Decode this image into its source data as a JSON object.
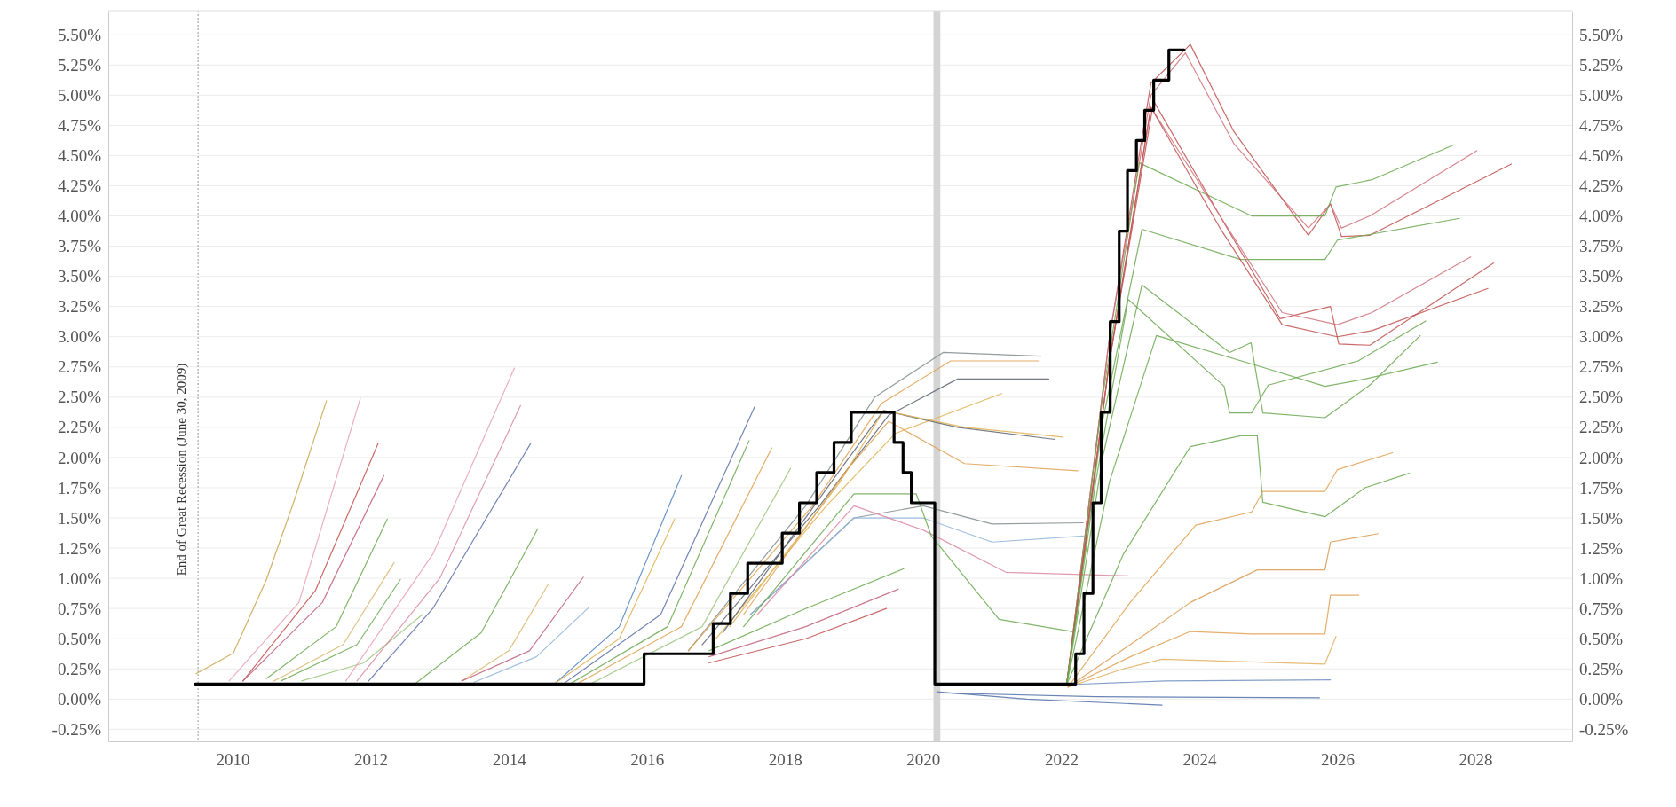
{
  "chart_data": {
    "type": "line",
    "xlim": [
      2008.2,
      2029.4
    ],
    "xticks": [
      2010,
      2012,
      2014,
      2016,
      2018,
      2020,
      2022,
      2024,
      2026,
      2028
    ],
    "ylim": [
      -0.35,
      5.7
    ],
    "yticks": [
      {
        "value": -0.25,
        "label": "-0.25%"
      },
      {
        "value": 0,
        "label": "0.00%"
      },
      {
        "value": 0.25,
        "label": "0.25%"
      },
      {
        "value": 0.5,
        "label": "0.50%"
      },
      {
        "value": 0.75,
        "label": "0.75%"
      },
      {
        "value": 1,
        "label": "1.00%"
      },
      {
        "value": 1.25,
        "label": "1.25%"
      },
      {
        "value": 1.5,
        "label": "1.50%"
      },
      {
        "value": 1.75,
        "label": "1.75%"
      },
      {
        "value": 2,
        "label": "2.00%"
      },
      {
        "value": 2.25,
        "label": "2.25%"
      },
      {
        "value": 2.5,
        "label": "2.50%"
      },
      {
        "value": 2.75,
        "label": "2.75%"
      },
      {
        "value": 3,
        "label": "3.00%"
      },
      {
        "value": 3.25,
        "label": "3.25%"
      },
      {
        "value": 3.5,
        "label": "3.50%"
      },
      {
        "value": 3.75,
        "label": "3.75%"
      },
      {
        "value": 4,
        "label": "4.00%"
      },
      {
        "value": 4.25,
        "label": "4.25%"
      },
      {
        "value": 4.5,
        "label": "4.50%"
      },
      {
        "value": 4.75,
        "label": "4.75%"
      },
      {
        "value": 5,
        "label": "5.00%"
      },
      {
        "value": 5.25,
        "label": "5.25%"
      },
      {
        "value": 5.5,
        "label": "5.50%"
      }
    ],
    "y2lim": [
      -0.35,
      5.7
    ],
    "y2ticks": [
      {
        "value": -0.25,
        "label": "-0.25%"
      },
      {
        "value": 0,
        "label": "0.00%"
      },
      {
        "value": 0.25,
        "label": "0.25%"
      },
      {
        "value": 0.5,
        "label": "0.50%"
      },
      {
        "value": 0.75,
        "label": "0.75%"
      },
      {
        "value": 1,
        "label": "1.00%"
      },
      {
        "value": 1.25,
        "label": "1.25%"
      },
      {
        "value": 1.5,
        "label": "1.50%"
      },
      {
        "value": 1.75,
        "label": "1.75%"
      },
      {
        "value": 2,
        "label": "2.00%"
      },
      {
        "value": 2.25,
        "label": "2.25%"
      },
      {
        "value": 2.5,
        "label": "2.50%"
      },
      {
        "value": 2.75,
        "label": "2.75%"
      },
      {
        "value": 3,
        "label": "3.00%"
      },
      {
        "value": 3.25,
        "label": "3.25%"
      },
      {
        "value": 3.5,
        "label": "3.50%"
      },
      {
        "value": 3.75,
        "label": "3.75%"
      },
      {
        "value": 4,
        "label": "4.00%"
      },
      {
        "value": 4.25,
        "label": "4.25%"
      },
      {
        "value": 4.5,
        "label": "4.50%"
      },
      {
        "value": 4.75,
        "label": "4.75%"
      },
      {
        "value": 5,
        "label": "5.00%"
      },
      {
        "value": 5.25,
        "label": "5.25%"
      },
      {
        "value": 5.5,
        "label": "5.50%"
      }
    ],
    "grid": "y",
    "ref_lines": [
      {
        "axis": "x",
        "value": 2009.5,
        "label": "End of Great Recession (June 30, 2009)",
        "color": "#9a9a9a",
        "line_style": "dotted"
      }
    ],
    "bands": [
      {
        "axis": "x",
        "from": 2020.15,
        "to": 2020.25,
        "color": "#d4d4d4"
      }
    ],
    "series": [
      {
        "type": "line",
        "color": "#c9a44c",
        "x": [
          2009.47,
          2010.01,
          2010.49,
          2010.89,
          2011.36
        ],
        "values": [
          0.21,
          0.38,
          0.99,
          1.64,
          2.47
        ]
      },
      {
        "type": "line",
        "color": "#e8a0b4",
        "x": [
          2009.95,
          2010.96,
          2011.85
        ],
        "values": [
          0.15,
          0.8,
          2.49
        ]
      },
      {
        "type": "line",
        "color": "#c0504d",
        "x": [
          2010.15,
          2011.2,
          2012.11
        ],
        "values": [
          0.15,
          0.9,
          2.12
        ]
      },
      {
        "type": "line",
        "color": "#c0607a",
        "x": [
          2010.15,
          2011.3,
          2012.19
        ],
        "values": [
          0.15,
          0.8,
          1.85
        ]
      },
      {
        "type": "line",
        "color": "#6aa84f",
        "x": [
          2010.49,
          2011.5,
          2012.24
        ],
        "values": [
          0.17,
          0.6,
          1.49
        ]
      },
      {
        "type": "line",
        "color": "#d9b870",
        "x": [
          2010.6,
          2011.6,
          2012.34
        ],
        "values": [
          0.15,
          0.45,
          1.13
        ]
      },
      {
        "type": "line",
        "color": "#6aa84f",
        "x": [
          2010.7,
          2011.8,
          2012.43
        ],
        "values": [
          0.15,
          0.45,
          0.99
        ]
      },
      {
        "type": "line",
        "color": "#9bc47d",
        "x": [
          2011.0,
          2011.9,
          2012.75
        ],
        "values": [
          0.15,
          0.3,
          0.7
        ]
      },
      {
        "type": "line",
        "color": "#e8a0b4",
        "x": [
          2011.64,
          2012.9,
          2014.08
        ],
        "values": [
          0.15,
          1.2,
          2.74
        ]
      },
      {
        "type": "line",
        "color": "#d98aa0",
        "x": [
          2011.8,
          2013.0,
          2014.17
        ],
        "values": [
          0.15,
          1.0,
          2.43
        ]
      },
      {
        "type": "line",
        "color": "#5a6fa8",
        "x": [
          2011.97,
          2012.9,
          2014.32
        ],
        "values": [
          0.15,
          0.75,
          2.12
        ]
      },
      {
        "type": "line",
        "color": "#6aa84f",
        "x": [
          2012.65,
          2013.6,
          2014.42
        ],
        "values": [
          0.13,
          0.55,
          1.41
        ]
      },
      {
        "type": "line",
        "color": "#d9b870",
        "x": [
          2013.32,
          2014.0,
          2014.57
        ],
        "values": [
          0.15,
          0.4,
          0.95
        ]
      },
      {
        "type": "line",
        "color": "#c0607a",
        "x": [
          2013.32,
          2014.3,
          2015.08
        ],
        "values": [
          0.15,
          0.4,
          1.01
        ]
      },
      {
        "type": "line",
        "color": "#8fb4d9",
        "x": [
          2013.5,
          2014.4,
          2015.16
        ],
        "values": [
          0.14,
          0.35,
          0.76
        ]
      },
      {
        "type": "line",
        "color": "#4f81bd",
        "x": [
          2014.67,
          2015.6,
          2016.5
        ],
        "values": [
          0.13,
          0.6,
          1.85
        ]
      },
      {
        "type": "line",
        "color": "#e0b050",
        "x": [
          2014.67,
          2015.6,
          2016.4
        ],
        "values": [
          0.13,
          0.5,
          1.49
        ]
      },
      {
        "type": "line",
        "color": "#5a6fa8",
        "x": [
          2014.8,
          2016.2,
          2017.56
        ],
        "values": [
          0.13,
          0.7,
          2.42
        ]
      },
      {
        "type": "line",
        "color": "#6aa84f",
        "x": [
          2014.9,
          2016.3,
          2017.48
        ],
        "values": [
          0.13,
          0.6,
          2.14
        ]
      },
      {
        "type": "line",
        "color": "#e0a050",
        "x": [
          2015.0,
          2016.5,
          2017.81
        ],
        "values": [
          0.13,
          0.6,
          2.08
        ]
      },
      {
        "type": "line",
        "color": "#9bc47d",
        "x": [
          2015.2,
          2016.8,
          2018.08
        ],
        "values": [
          0.13,
          0.6,
          1.91
        ]
      },
      {
        "type": "line",
        "color": "#7f8c8d",
        "x": [
          2016.6,
          2018.3,
          2019.3,
          2020.29,
          2021.71
        ],
        "values": [
          0.4,
          1.6,
          2.5,
          2.87,
          2.84
        ]
      },
      {
        "type": "line",
        "color": "#e0a050",
        "x": [
          2016.6,
          2018.4,
          2019.4,
          2020.4,
          2021.67
        ],
        "values": [
          0.4,
          1.6,
          2.45,
          2.8,
          2.8
        ]
      },
      {
        "type": "line",
        "color": "#5a6070",
        "x": [
          2016.8,
          2018.5,
          2019.5,
          2020.5,
          2021.82
        ],
        "values": [
          0.45,
          1.6,
          2.35,
          2.65,
          2.65
        ]
      },
      {
        "type": "line",
        "color": "#e0b050",
        "x": [
          2017.0,
          2018.6,
          2019.6,
          2021.14
        ],
        "values": [
          0.5,
          1.6,
          2.2,
          2.53
        ]
      },
      {
        "type": "line",
        "color": "#5a6070",
        "x": [
          2017.1,
          2018.8,
          2019.43,
          2020.5,
          2021.91
        ],
        "values": [
          0.55,
          1.9,
          2.39,
          2.25,
          2.15
        ]
      },
      {
        "type": "line",
        "color": "#e0b050",
        "x": [
          2017.2,
          2018.8,
          2019.43,
          2020.6,
          2022.03
        ],
        "values": [
          0.6,
          1.8,
          2.39,
          2.25,
          2.17
        ]
      },
      {
        "type": "line",
        "color": "#e0a050",
        "x": [
          2017.4,
          2018.9,
          2019.5,
          2020.6,
          2022.24
        ],
        "values": [
          0.7,
          1.9,
          2.3,
          1.95,
          1.89
        ]
      },
      {
        "type": "line",
        "color": "#7f8c8d",
        "x": [
          2017.5,
          2019.0,
          2020.0,
          2021.0,
          2022.32
        ],
        "values": [
          0.7,
          1.5,
          1.6,
          1.45,
          1.46
        ]
      },
      {
        "type": "line",
        "color": "#8fb4d9",
        "x": [
          2017.5,
          2019.0,
          2020.0,
          2021.0,
          2022.32
        ],
        "values": [
          0.7,
          1.5,
          1.5,
          1.3,
          1.35
        ]
      },
      {
        "type": "line",
        "color": "#d98aa0",
        "x": [
          2017.6,
          2019.0,
          2020.0,
          2021.2,
          2022.97
        ],
        "values": [
          0.7,
          1.6,
          1.4,
          1.05,
          1.02
        ]
      },
      {
        "type": "line",
        "color": "#6aa84f",
        "x": [
          2017.4,
          2019.0,
          2019.9,
          2020.12,
          2021.1,
          2022.16
        ],
        "values": [
          0.6,
          1.7,
          1.7,
          1.35,
          0.66,
          0.56
        ]
      },
      {
        "type": "line",
        "color": "#6aa84f",
        "x": [
          2016.9,
          2018.3,
          2019.72
        ],
        "values": [
          0.4,
          0.75,
          1.08
        ]
      },
      {
        "type": "line",
        "color": "#c0607a",
        "x": [
          2016.9,
          2018.3,
          2019.64
        ],
        "values": [
          0.35,
          0.6,
          0.91
        ]
      },
      {
        "type": "line",
        "color": "#c0504d",
        "x": [
          2016.9,
          2018.3,
          2019.47
        ],
        "values": [
          0.3,
          0.5,
          0.75
        ]
      },
      {
        "type": "line",
        "color": "#4f6fa8",
        "x": [
          2020.2,
          2021.5,
          2023.46
        ],
        "values": [
          0.06,
          0.0,
          -0.05
        ]
      },
      {
        "type": "line",
        "color": "#4f6fa8",
        "x": [
          2020.3,
          2022.5,
          2025.74
        ],
        "values": [
          0.05,
          0.02,
          0.01
        ]
      },
      {
        "type": "line",
        "color": "#6f8fc0",
        "x": [
          2022.1,
          2023.5,
          2025.9
        ],
        "values": [
          0.12,
          0.15,
          0.16
        ]
      },
      {
        "type": "line",
        "color": "#c0504d",
        "x": [
          2022.08,
          2022.7,
          2023.3,
          2023.87,
          2024.5,
          2025.58,
          2025.9,
          2026.06,
          2026.47,
          2028.52
        ],
        "values": [
          0.12,
          3.0,
          5.1,
          5.42,
          4.7,
          3.84,
          4.1,
          3.83,
          3.84,
          4.43
        ]
      },
      {
        "type": "line",
        "color": "#d0707a",
        "x": [
          2022.08,
          2022.7,
          2023.3,
          2023.8,
          2024.5,
          2025.58,
          2025.9,
          2026.06,
          2026.47,
          2028.02
        ],
        "values": [
          0.12,
          3.0,
          5.0,
          5.35,
          4.6,
          3.9,
          4.1,
          3.9,
          4.0,
          4.54
        ]
      },
      {
        "type": "line",
        "color": "#6aa84f",
        "x": [
          2022.08,
          2022.6,
          2023.13,
          2024.76,
          2025.82,
          2025.98,
          2026.5,
          2027.69
        ],
        "values": [
          0.12,
          2.5,
          4.44,
          4.0,
          4.0,
          4.24,
          4.3,
          4.59
        ]
      },
      {
        "type": "line",
        "color": "#6aa84f",
        "x": [
          2022.08,
          2022.6,
          2023.17,
          2024.6,
          2025.82,
          2026.0,
          2026.5,
          2027.77
        ],
        "values": [
          0.12,
          2.3,
          3.89,
          3.64,
          3.64,
          3.8,
          3.85,
          3.98
        ]
      },
      {
        "type": "line",
        "color": "#c0504d",
        "x": [
          2022.08,
          2022.7,
          2023.34,
          2024.3,
          2025.17,
          2025.9,
          2026.02,
          2026.47,
          2028.26
        ],
        "values": [
          0.12,
          2.8,
          4.95,
          4.0,
          3.15,
          3.25,
          2.94,
          2.93,
          3.61
        ]
      },
      {
        "type": "line",
        "color": "#d0707a",
        "x": [
          2022.08,
          2022.7,
          2023.3,
          2024.3,
          2025.2,
          2026.0,
          2026.5,
          2027.93
        ],
        "values": [
          0.12,
          2.8,
          4.9,
          4.0,
          3.2,
          3.1,
          3.2,
          3.66
        ]
      },
      {
        "type": "line",
        "color": "#c0504d",
        "x": [
          2022.08,
          2022.7,
          2023.3,
          2024.3,
          2025.2,
          2026.0,
          2026.5,
          2028.18
        ],
        "values": [
          0.12,
          2.8,
          4.9,
          3.9,
          3.1,
          3.0,
          3.05,
          3.4
        ]
      },
      {
        "type": "line",
        "color": "#6aa84f",
        "x": [
          2022.08,
          2022.6,
          2023.17,
          2024.44,
          2024.75,
          2024.92,
          2025.82,
          2026.47,
          2027.2
        ],
        "values": [
          0.12,
          2.0,
          3.43,
          2.87,
          2.95,
          2.37,
          2.33,
          2.6,
          3.01
        ]
      },
      {
        "type": "line",
        "color": "#6aa84f",
        "x": [
          2022.08,
          2022.5,
          2022.97,
          2024.36,
          2024.44,
          2024.76,
          2025.0,
          2026.3,
          2027.28
        ],
        "values": [
          0.12,
          1.8,
          3.31,
          2.59,
          2.37,
          2.37,
          2.6,
          2.8,
          3.13
        ]
      },
      {
        "type": "line",
        "color": "#6aa84f",
        "x": [
          2022.08,
          2022.7,
          2023.38,
          2024.9,
          2025.82,
          2026.4,
          2027.45
        ],
        "values": [
          0.12,
          1.8,
          3.01,
          2.75,
          2.59,
          2.65,
          2.79
        ]
      },
      {
        "type": "line",
        "color": "#6aa84f",
        "x": [
          2022.08,
          2022.9,
          2023.87,
          2024.6,
          2024.84,
          2024.92,
          2025.82,
          2026.4,
          2027.04
        ],
        "values": [
          0.12,
          1.2,
          2.09,
          2.18,
          2.18,
          1.63,
          1.51,
          1.75,
          1.87
        ]
      },
      {
        "type": "line",
        "color": "#e0a050",
        "x": [
          2022.1,
          2023.0,
          2023.95,
          2024.76,
          2024.92,
          2025.82,
          2026.0,
          2026.8
        ],
        "values": [
          0.1,
          0.8,
          1.44,
          1.55,
          1.72,
          1.72,
          1.9,
          2.04
        ]
      },
      {
        "type": "line",
        "color": "#d99a50",
        "x": [
          2022.1,
          2023.0,
          2023.87,
          2024.84,
          2025.82,
          2025.9,
          2026.59
        ],
        "values": [
          0.1,
          0.45,
          0.8,
          1.07,
          1.07,
          1.3,
          1.37
        ]
      },
      {
        "type": "line",
        "color": "#e0a050",
        "x": [
          2022.1,
          2023.0,
          2023.87,
          2024.76,
          2025.82,
          2025.9,
          2026.31
        ],
        "values": [
          0.1,
          0.35,
          0.56,
          0.54,
          0.54,
          0.86,
          0.86
        ]
      },
      {
        "type": "line",
        "color": "#e0b060",
        "x": [
          2022.1,
          2022.9,
          2023.46,
          2025.82,
          2025.98
        ],
        "values": [
          0.1,
          0.25,
          0.33,
          0.29,
          0.52
        ]
      },
      {
        "type": "step",
        "color": "#000000",
        "x": [
          2009.46,
          2015.96,
          2016.96,
          2017.21,
          2017.46,
          2017.96,
          2018.21,
          2018.46,
          2018.71,
          2018.96,
          2019.58,
          2019.71,
          2019.83,
          2020.17,
          2022.21,
          2022.33,
          2022.46,
          2022.58,
          2022.71,
          2022.84,
          2022.96,
          2023.09,
          2023.21,
          2023.34,
          2023.56,
          2023.78
        ],
        "values": [
          0.125,
          0.375,
          0.625,
          0.875,
          1.125,
          1.375,
          1.625,
          1.875,
          2.125,
          2.375,
          2.125,
          1.875,
          1.625,
          0.125,
          0.375,
          0.875,
          1.625,
          2.375,
          3.125,
          3.875,
          4.375,
          4.625,
          4.875,
          5.125,
          5.375,
          5.375
        ]
      }
    ]
  }
}
